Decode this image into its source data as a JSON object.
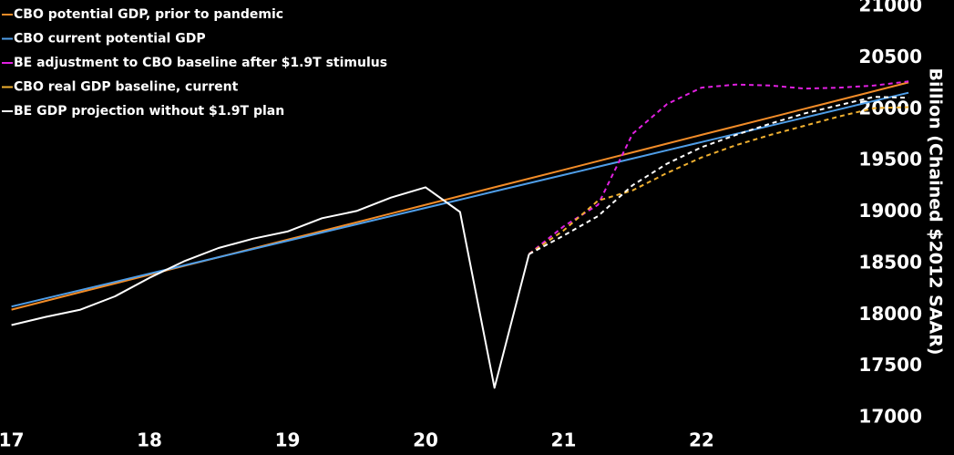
{
  "chart_data": {
    "type": "line",
    "y_label": "Billion (Chained $2012 SAAR)",
    "xlim": [
      16.95,
      23.75
    ],
    "xticks": [
      17,
      18,
      19,
      20,
      21,
      22
    ],
    "ylim": [
      17000,
      21000
    ],
    "yticks": [
      17000,
      17500,
      18000,
      18500,
      19000,
      19500,
      20000,
      20500,
      21000
    ],
    "grid": false,
    "legend": "top-left",
    "series": [
      {
        "name": "CBO potential GDP, prior to pandemic",
        "color": "#f28c28",
        "dashed": false,
        "x": [
          17,
          17.25,
          17.5,
          17.75,
          18,
          18.25,
          18.5,
          18.75,
          19,
          19.25,
          19.5,
          19.75,
          20,
          20.25,
          20.5,
          20.75,
          21,
          21.25,
          21.5,
          21.75,
          22,
          22.25,
          22.5,
          22.75,
          23,
          23.25,
          23.5
        ],
        "values": [
          18050,
          18135,
          18220,
          18305,
          18390,
          18475,
          18560,
          18645,
          18730,
          18815,
          18900,
          18985,
          19070,
          19155,
          19240,
          19325,
          19410,
          19495,
          19580,
          19665,
          19750,
          19835,
          19920,
          20005,
          20090,
          20175,
          20260
        ]
      },
      {
        "name": "CBO current potential GDP",
        "color": "#4f9ee8",
        "dashed": false,
        "x": [
          17,
          17.25,
          17.5,
          17.75,
          18,
          18.25,
          18.5,
          18.75,
          19,
          19.25,
          19.5,
          19.75,
          20,
          20.25,
          20.5,
          20.75,
          21,
          21.25,
          21.5,
          21.75,
          22,
          22.25,
          22.5,
          22.75,
          23,
          23.25,
          23.5
        ],
        "values": [
          18080,
          18160,
          18240,
          18320,
          18400,
          18480,
          18560,
          18640,
          18720,
          18800,
          18880,
          18960,
          19040,
          19120,
          19200,
          19280,
          19360,
          19440,
          19520,
          19600,
          19680,
          19760,
          19840,
          19920,
          20000,
          20080,
          20160
        ]
      },
      {
        "name": "BE adjustment to CBO baseline after $1.9T stimulus",
        "color": "#e020e0",
        "dashed": true,
        "x": [
          20.75,
          21,
          21.25,
          21.5,
          21.75,
          22,
          22.25,
          22.5,
          22.75,
          23,
          23.25,
          23.5
        ],
        "values": [
          18590,
          18860,
          19070,
          19760,
          20050,
          20210,
          20240,
          20230,
          20200,
          20210,
          20230,
          20270
        ]
      },
      {
        "name": "CBO real GDP baseline, current",
        "color": "#f0b030",
        "dashed": true,
        "x": [
          20.75,
          21,
          21.25,
          21.5,
          21.75,
          22,
          22.25,
          22.5,
          22.75,
          23,
          23.25,
          23.5
        ],
        "values": [
          18590,
          18820,
          19110,
          19210,
          19380,
          19530,
          19650,
          19750,
          19840,
          19930,
          20010,
          20020
        ]
      },
      {
        "name": "BE GDP projection without $1.9T plan",
        "color": "#ffffff",
        "dashed": false,
        "x": [
          17,
          17.25,
          17.5,
          17.75,
          18,
          18.25,
          18.5,
          18.75,
          19,
          19.25,
          19.5,
          19.75,
          20,
          20.25,
          20.5,
          20.75
        ],
        "values": [
          17900,
          17980,
          18050,
          18180,
          18360,
          18520,
          18650,
          18740,
          18810,
          18940,
          19010,
          19140,
          19240,
          19000,
          17290,
          18590
        ]
      },
      {
        "color": "#ffffff",
        "dashed": true,
        "x": [
          20.75,
          21,
          21.25,
          21.5,
          21.75,
          22,
          22.25,
          22.5,
          22.75,
          23,
          23.25,
          23.5
        ],
        "values": [
          18590,
          18770,
          18960,
          19260,
          19470,
          19630,
          19750,
          19860,
          19960,
          20040,
          20120,
          20110
        ]
      }
    ]
  }
}
